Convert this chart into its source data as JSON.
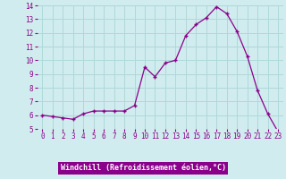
{
  "x": [
    0,
    1,
    2,
    3,
    4,
    5,
    6,
    7,
    8,
    9,
    10,
    11,
    12,
    13,
    14,
    15,
    16,
    17,
    18,
    19,
    20,
    21,
    22,
    23
  ],
  "y": [
    6.0,
    5.9,
    5.8,
    5.7,
    6.1,
    6.3,
    6.3,
    6.3,
    6.3,
    6.7,
    9.5,
    8.8,
    9.8,
    10.0,
    11.8,
    12.6,
    13.1,
    13.9,
    13.4,
    12.1,
    10.3,
    7.8,
    6.1,
    4.8
  ],
  "xlabel": "Windchill (Refroidissement éolien,°C)",
  "ylim": [
    5,
    14
  ],
  "yticks": [
    5,
    6,
    7,
    8,
    9,
    10,
    11,
    12,
    13,
    14
  ],
  "xticks": [
    0,
    1,
    2,
    3,
    4,
    5,
    6,
    7,
    8,
    9,
    10,
    11,
    12,
    13,
    14,
    15,
    16,
    17,
    18,
    19,
    20,
    21,
    22,
    23
  ],
  "line_color": "#8B008B",
  "marker": "s",
  "marker_size": 2.5,
  "bg_color": "#d0ecee",
  "grid_color": "#b0d8da",
  "tick_color": "#8B008B",
  "xlabel_bg": "#8B008B",
  "xlabel_fg": "#ffffff"
}
